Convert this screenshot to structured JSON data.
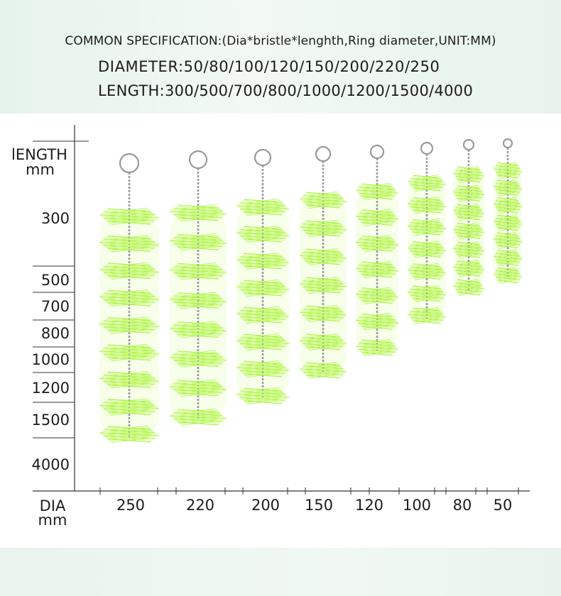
{
  "spec": {
    "common": "COMMON SPECIFICATION:(Dia*bristle*lenghth,Ring diameter,UNIT:MM)",
    "diameter": "DIAMETER:50/80/100/120/150/200/220/250",
    "length": "LENGTH:300/500/700/800/1000/1200/1500/4000"
  },
  "axes": {
    "y_title_line1": "lENGTH",
    "y_title_line2": "mm",
    "x_title_line1": "DIA",
    "x_title_line2": "mm"
  },
  "length_labels": [
    "300",
    "500",
    "700",
    "800",
    "1000",
    "1200",
    "1500",
    "4000"
  ],
  "diameter_labels": [
    "250",
    "220",
    "200",
    "150",
    "120",
    "100",
    "80",
    "50"
  ],
  "colors": {
    "bristle": "#a9f43a",
    "bristle_light": "#d4fb8c",
    "wire": "#9a9a9a",
    "axis": "#333333",
    "band": "#e6f3ea"
  }
}
